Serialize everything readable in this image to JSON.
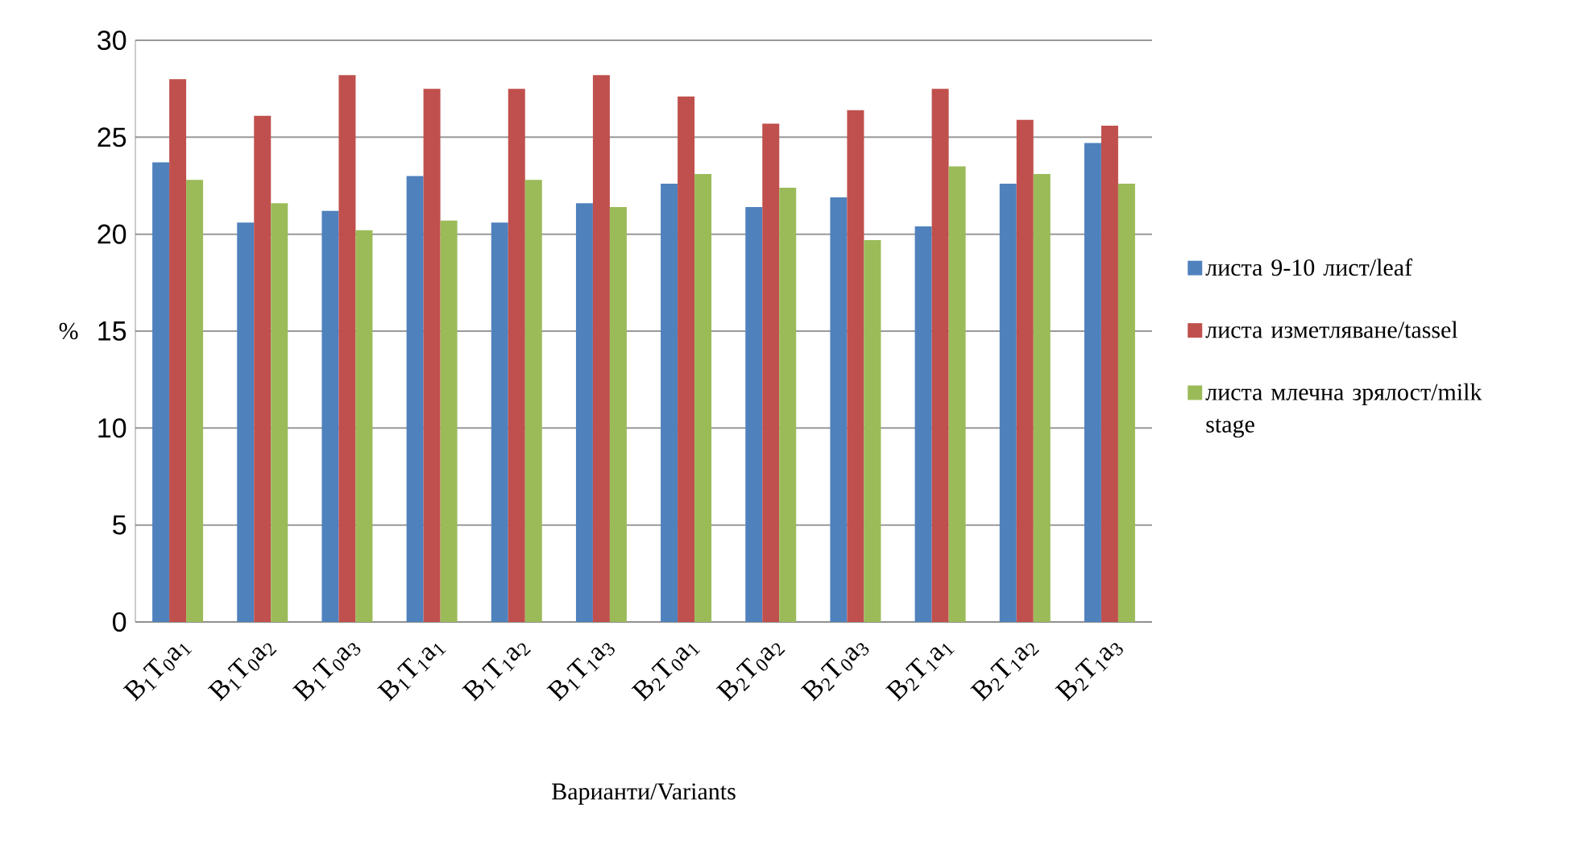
{
  "chart_data": {
    "type": "bar",
    "xlabel": "Варианти/Variants",
    "ylabel": "%",
    "categories": [
      "B$_{1}$T$_{0}$a$_{1}$",
      "B$_{1}$T$_{0}$a$_{2}$",
      "B$_{1}$T$_{0}$a$_{3}$",
      "B$_{1}$T$_{1}$a$_{1}$",
      "B$_{1}$T$_{1}$a$_{2}$",
      "B$_{1}$T$_{1}$a$_{3}$",
      "B$_{2}$T$_{0}$a$_{1}$",
      "B$_{2}$T$_{0}$a$_{2}$",
      "B$_{2}$T$_{0}$a$_{3}$",
      "B$_{2}$T$_{1}$a$_{1}$",
      "B$_{2}$T$_{1}$a$_{2}$",
      "B$_{2}$T$_{1}$a$_{3}$"
    ],
    "series": [
      {
        "name": "листа 9-10 лист/leaf",
        "color": "#4f81bd",
        "values": [
          23.7,
          20.6,
          21.2,
          23.0,
          20.6,
          21.6,
          22.6,
          21.4,
          21.9,
          20.4,
          22.6,
          24.7
        ]
      },
      {
        "name": "листа изметляване/tassel",
        "color": "#c0504d",
        "values": [
          28.0,
          26.1,
          28.2,
          27.5,
          27.5,
          28.2,
          27.1,
          25.7,
          26.4,
          27.5,
          25.9,
          25.6
        ]
      },
      {
        "name": "листа млечна зрялост/milk stage",
        "color": "#9bbb59",
        "values": [
          22.8,
          21.6,
          20.2,
          20.7,
          22.8,
          21.4,
          23.1,
          22.4,
          19.7,
          23.5,
          23.1,
          22.6
        ]
      }
    ],
    "ylim": [
      0,
      30
    ],
    "yticks": [
      0,
      5,
      10,
      15,
      20,
      25,
      30
    ],
    "grid": "y",
    "legend": "right"
  }
}
